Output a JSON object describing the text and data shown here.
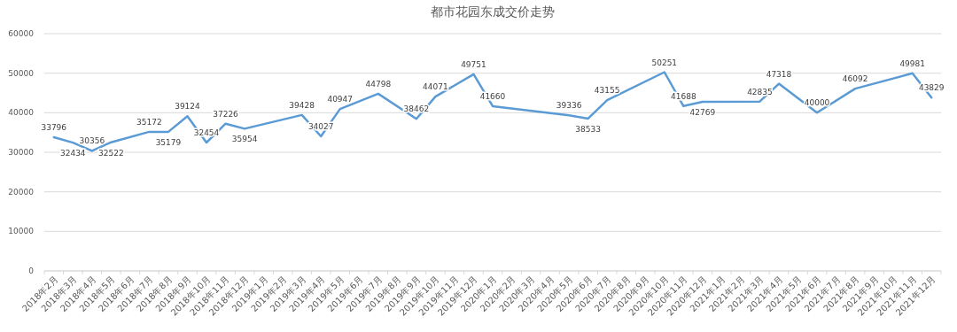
{
  "chart_data": {
    "type": "line",
    "title": "都市花园东成交价走势",
    "categories": [
      "2018年2月",
      "2018年3月",
      "2018年4月",
      "2018年5月",
      "2018年6月",
      "2018年7月",
      "2018年8月",
      "2018年9月",
      "2018年10月",
      "2018年11月",
      "2018年12月",
      "2019年1月",
      "2019年2月",
      "2019年3月",
      "2019年4月",
      "2019年5月",
      "2019年6月",
      "2019年7月",
      "2019年8月",
      "2019年9月",
      "2019年10月",
      "2019年11月",
      "2019年12月",
      "2020年1月",
      "2020年2月",
      "2020年3月",
      "2020年4月",
      "2020年5月",
      "2020年6月",
      "2020年7月",
      "2020年8月",
      "2020年9月",
      "2020年10月",
      "2020年11月",
      "2020年12月",
      "2021年1月",
      "2021年2月",
      "2021年3月",
      "2021年4月",
      "2021年5月",
      "2021年6月",
      "2021年7月",
      "2021年8月",
      "2021年9月",
      "2021年10月",
      "2021年11月",
      "2021年12月"
    ],
    "series": [
      {
        "color": "#5b9bd5",
        "values": [
          33796,
          32434,
          30356,
          32522,
          null,
          35172,
          35179,
          39124,
          32454,
          37226,
          35954,
          null,
          null,
          39428,
          34027,
          40947,
          null,
          44798,
          null,
          38462,
          44071,
          null,
          49751,
          41660,
          null,
          null,
          null,
          39336,
          38533,
          43155,
          null,
          null,
          50251,
          41688,
          42769,
          null,
          null,
          42835,
          47318,
          null,
          40000,
          null,
          46092,
          null,
          null,
          49981,
          43829
        ]
      }
    ],
    "ylim": [
      0,
      60000
    ],
    "yticks": [
      0,
      10000,
      20000,
      30000,
      40000,
      50000,
      60000
    ],
    "grid": "y",
    "data_labels": true,
    "marker": "none",
    "line_style": "solid"
  }
}
